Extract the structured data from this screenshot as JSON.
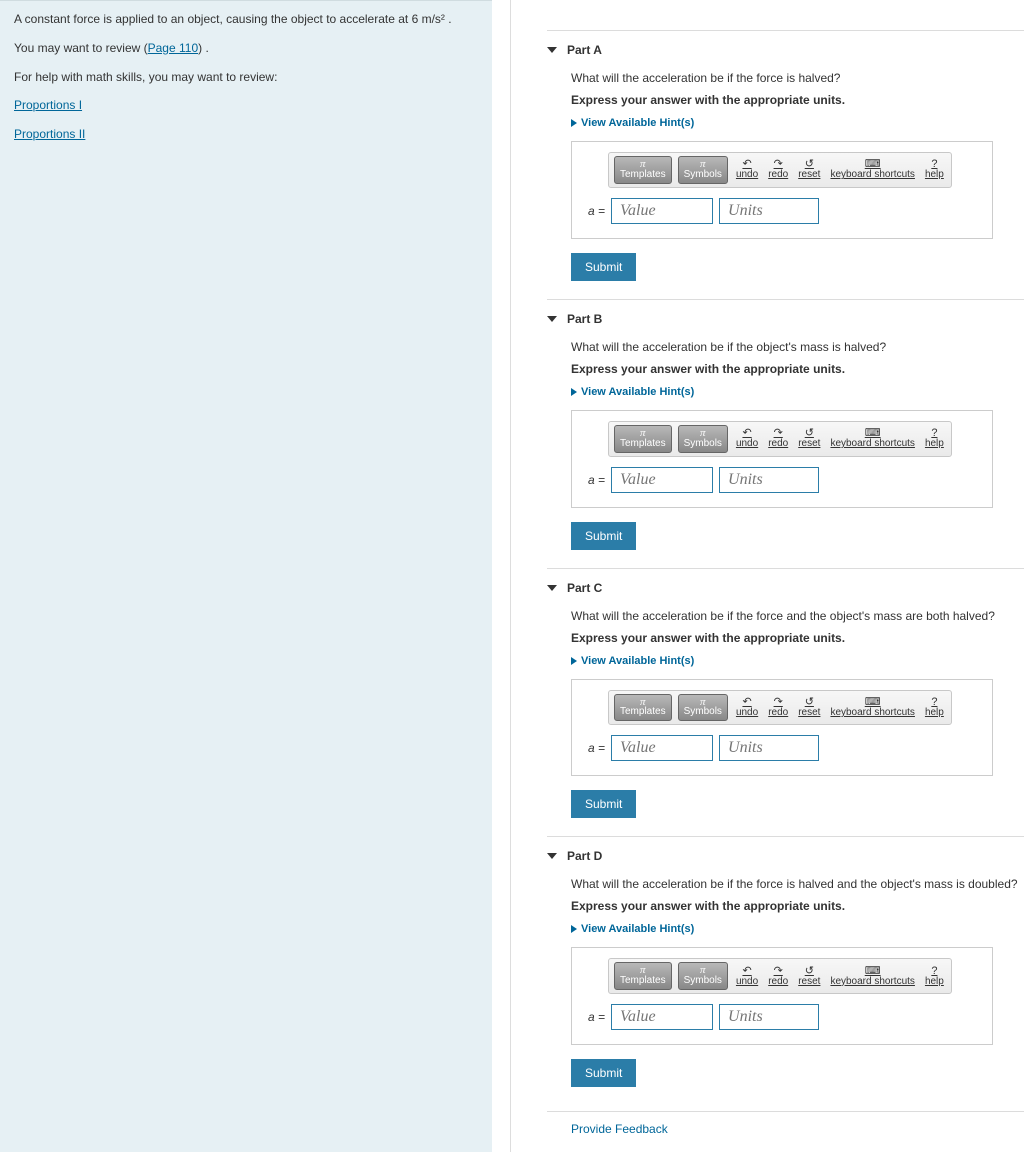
{
  "problem": {
    "intro_prefix": "A constant force is applied to an object, causing the object to accelerate at 6 ",
    "intro_units": "m/s²",
    "intro_suffix": " .",
    "review_text_prefix": "You may want to review (",
    "review_link": "Page 110",
    "review_text_suffix": ") .",
    "help_text": "For help with math skills, you may want to review:",
    "links": [
      "Proportions I",
      "Proportions II"
    ]
  },
  "parts": [
    {
      "title": "Part A",
      "question": "What will the acceleration be if the force is halved?",
      "instruction": "Express your answer with the appropriate units.",
      "hints_label": "View Available Hint(s)"
    },
    {
      "title": "Part B",
      "question": "What will the acceleration be if the object's mass is halved?",
      "instruction": "Express your answer with the appropriate units.",
      "hints_label": "View Available Hint(s)"
    },
    {
      "title": "Part C",
      "question": "What will the acceleration be if the force and the object's mass are both halved?",
      "instruction": "Express your answer with the appropriate units.",
      "hints_label": "View Available Hint(s)"
    },
    {
      "title": "Part D",
      "question": "What will the acceleration be if the force is halved and the object's mass is doubled?",
      "instruction": "Express your answer with the appropriate units.",
      "hints_label": "View Available Hint(s)"
    }
  ],
  "toolbar": {
    "templates": "Templates",
    "symbols": "Symbols",
    "undo": "undo",
    "redo": "redo",
    "reset": "reset",
    "keyboard": "keyboard shortcuts",
    "help": "help"
  },
  "answer": {
    "var_label": "a =",
    "value_placeholder": "Value",
    "units_placeholder": "Units",
    "submit": "Submit"
  },
  "footer": {
    "feedback": "Provide Feedback"
  },
  "colors": {
    "left_bg": "#e6f0f4",
    "link": "#006699",
    "submit_bg": "#2b7da8",
    "input_border": "#2b7da8",
    "border_gray": "#dcdcdc"
  }
}
